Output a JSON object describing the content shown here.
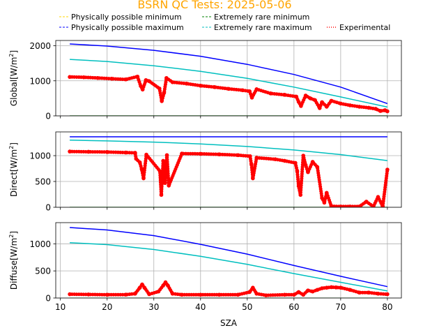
{
  "title": "BSRN QC Tests: 2025-05-06",
  "title_color": "#ffa500",
  "xlabel": "SZA",
  "legend": [
    {
      "label": "Physically possible minimum",
      "color": "#ffd700",
      "style": "dashed"
    },
    {
      "label": "Extremely rare minimum",
      "color": "#008000",
      "style": "dashed"
    },
    {
      "label": "Physically possible maximum",
      "color": "#0000ff",
      "style": "dashed"
    },
    {
      "label": "Extremely rare maximum",
      "color": "#00bfbf",
      "style": "dashed"
    },
    {
      "label": "Experimental",
      "color": "#ff0000",
      "style": "dotted"
    }
  ],
  "chart_data": [
    {
      "type": "scatter",
      "ylabel": "Global[W/m²]",
      "ylabel_main": "Global[W/m",
      "ylabel_sup": "2",
      "ylabel_end": "]",
      "xlim": [
        9,
        83
      ],
      "ylim": [
        0,
        2150
      ],
      "xticks": [
        10,
        20,
        30,
        40,
        50,
        60,
        70,
        80
      ],
      "yticks": [
        0,
        1000,
        2000
      ],
      "grid": true,
      "series": [
        {
          "name": "Physically possible minimum",
          "kind": "line",
          "color": "#ffd700",
          "x": [
            12,
            80
          ],
          "y": [
            -4,
            -4
          ]
        },
        {
          "name": "Extremely rare minimum",
          "kind": "line",
          "color": "#008000",
          "x": [
            12,
            80
          ],
          "y": [
            -2,
            -2
          ]
        },
        {
          "name": "Physically possible maximum",
          "kind": "line",
          "color": "#0000ff",
          "x": [
            12,
            20,
            30,
            40,
            50,
            60,
            70,
            80
          ],
          "y": [
            2050,
            1990,
            1870,
            1700,
            1470,
            1180,
            820,
            350
          ]
        },
        {
          "name": "Extremely rare maximum",
          "kind": "line",
          "color": "#00bfbf",
          "x": [
            12,
            20,
            30,
            40,
            50,
            60,
            70,
            80
          ],
          "y": [
            1610,
            1550,
            1430,
            1270,
            1070,
            820,
            540,
            250
          ]
        },
        {
          "name": "Experimental",
          "kind": "scatter",
          "color": "#ff0000",
          "x": [
            12,
            15,
            18,
            21,
            24,
            26.5,
            27.2,
            27.6,
            28.3,
            29,
            31.2,
            31.7,
            32.2,
            32.7,
            34,
            37,
            40,
            43,
            46,
            49,
            50.5,
            51,
            52,
            55,
            58,
            60.5,
            61,
            61.5,
            62.5,
            63.5,
            64.5,
            65.5,
            66,
            67,
            68,
            70,
            72,
            74,
            76,
            77.5,
            78.5,
            79.5,
            80
          ],
          "y": [
            1110,
            1100,
            1080,
            1060,
            1040,
            1120,
            850,
            750,
            1020,
            990,
            780,
            420,
            660,
            1080,
            960,
            920,
            860,
            820,
            770,
            730,
            700,
            520,
            760,
            640,
            600,
            550,
            400,
            280,
            580,
            500,
            450,
            220,
            390,
            260,
            430,
            350,
            300,
            260,
            230,
            200,
            140,
            160,
            130
          ]
        }
      ]
    },
    {
      "type": "scatter",
      "ylabel": "Direct[W/m²]",
      "ylabel_main": "Direct[W/m",
      "ylabel_sup": "2",
      "ylabel_end": "]",
      "xlim": [
        9,
        83
      ],
      "ylim": [
        0,
        1460
      ],
      "xticks": [
        10,
        20,
        30,
        40,
        50,
        60,
        70,
        80
      ],
      "yticks": [
        0,
        500,
        1000
      ],
      "grid": true,
      "series": [
        {
          "name": "Physically possible minimum",
          "kind": "line",
          "color": "#ffd700",
          "x": [
            12,
            80
          ],
          "y": [
            -3,
            -3
          ]
        },
        {
          "name": "Extremely rare minimum",
          "kind": "line",
          "color": "#008000",
          "x": [
            12,
            80
          ],
          "y": [
            -1,
            -1
          ]
        },
        {
          "name": "Physically possible maximum",
          "kind": "line",
          "color": "#0000ff",
          "x": [
            12,
            80
          ],
          "y": [
            1365,
            1365
          ]
        },
        {
          "name": "Extremely rare maximum",
          "kind": "line",
          "color": "#00bfbf",
          "x": [
            12,
            20,
            30,
            40,
            50,
            60,
            70,
            80
          ],
          "y": [
            1300,
            1285,
            1262,
            1228,
            1178,
            1110,
            1020,
            905
          ]
        },
        {
          "name": "Experimental",
          "kind": "scatter",
          "color": "#ff0000",
          "x": [
            12,
            16,
            20,
            24,
            26,
            26.2,
            27,
            27.4,
            27.8,
            28.4,
            31.3,
            31.6,
            32,
            32.4,
            32.8,
            33.2,
            36,
            40,
            44,
            48,
            50.6,
            50.9,
            51.2,
            52,
            56,
            58,
            60.3,
            60.7,
            61,
            61.4,
            62,
            62.5,
            63,
            64,
            65,
            66,
            66.5,
            67,
            68,
            70,
            72,
            74,
            75.5,
            77,
            78,
            79,
            80
          ],
          "y": [
            1080,
            1075,
            1070,
            1060,
            1055,
            940,
            870,
            740,
            560,
            1020,
            700,
            240,
            900,
            470,
            1010,
            420,
            1040,
            1035,
            1025,
            1010,
            990,
            830,
            560,
            960,
            930,
            900,
            860,
            700,
            410,
            240,
            1000,
            820,
            680,
            880,
            780,
            180,
            90,
            280,
            20,
            15,
            15,
            15,
            110,
            15,
            200,
            15,
            730
          ]
        }
      ]
    },
    {
      "type": "scatter",
      "ylabel": "Diffuse[W/m²]",
      "ylabel_main": "Diffuse[W/m",
      "ylabel_sup": "2",
      "ylabel_end": "]",
      "xlim": [
        9,
        83
      ],
      "ylim": [
        0,
        1390
      ],
      "xticks": [
        10,
        20,
        30,
        40,
        50,
        60,
        70,
        80
      ],
      "yticks": [
        0,
        500,
        1000
      ],
      "grid": true,
      "series": [
        {
          "name": "Physically possible minimum",
          "kind": "line",
          "color": "#ffd700",
          "x": [
            12,
            80
          ],
          "y": [
            -4,
            -4
          ]
        },
        {
          "name": "Extremely rare minimum",
          "kind": "line",
          "color": "#008000",
          "x": [
            12,
            80
          ],
          "y": [
            -2,
            -2
          ]
        },
        {
          "name": "Physically possible maximum",
          "kind": "line",
          "color": "#0000ff",
          "x": [
            12,
            20,
            30,
            40,
            50,
            60,
            70,
            80
          ],
          "y": [
            1300,
            1255,
            1150,
            990,
            810,
            600,
            400,
            210
          ]
        },
        {
          "name": "Extremely rare maximum",
          "kind": "line",
          "color": "#00bfbf",
          "x": [
            12,
            20,
            30,
            40,
            50,
            60,
            70,
            80
          ],
          "y": [
            1020,
            985,
            895,
            770,
            620,
            450,
            290,
            130
          ]
        },
        {
          "name": "Experimental",
          "kind": "scatter",
          "color": "#ff0000",
          "x": [
            12,
            16,
            20,
            24,
            26,
            27,
            27.5,
            28,
            29,
            31,
            32,
            32.5,
            33,
            34,
            36,
            40,
            44,
            48,
            50.5,
            51.2,
            52,
            54,
            58,
            60,
            61,
            62,
            63,
            64,
            65,
            66,
            67,
            68,
            69,
            70,
            72,
            74,
            76,
            78,
            80
          ],
          "y": [
            70,
            65,
            60,
            62,
            80,
            190,
            250,
            190,
            70,
            120,
            230,
            290,
            230,
            80,
            60,
            60,
            60,
            60,
            110,
            190,
            80,
            50,
            60,
            60,
            110,
            60,
            140,
            120,
            150,
            180,
            190,
            200,
            195,
            190,
            150,
            100,
            100,
            80,
            70
          ]
        }
      ]
    }
  ]
}
